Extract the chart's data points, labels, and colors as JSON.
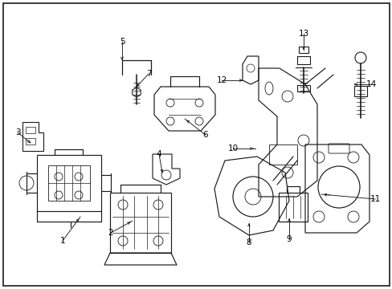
{
  "background_color": "#ffffff",
  "fig_width": 4.89,
  "fig_height": 3.6,
  "dpi": 100,
  "line_color": "#1a1a1a",
  "label_fontsize": 7.5
}
